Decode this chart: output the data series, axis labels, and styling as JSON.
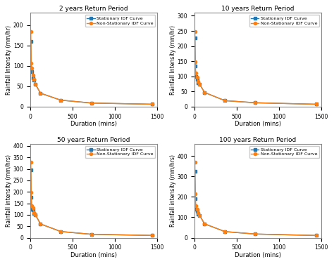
{
  "panels": [
    {
      "title": "2 years Return Period",
      "ylim": [
        0,
        230
      ],
      "yticks": [
        0,
        50,
        100,
        150,
        200
      ],
      "stat_y": [
        160,
        95,
        85,
        70,
        65,
        55,
        33,
        16,
        9,
        6
      ],
      "nonstat_y": [
        183,
        107,
        95,
        78,
        67,
        55,
        33,
        16,
        9,
        6
      ]
    },
    {
      "title": "10 years Return Period",
      "ylim": [
        0,
        310
      ],
      "yticks": [
        0,
        50,
        100,
        150,
        200,
        250,
        300
      ],
      "stat_y": [
        228,
        135,
        100,
        90,
        78,
        75,
        47,
        20,
        13,
        8
      ],
      "nonstat_y": [
        248,
        148,
        110,
        97,
        83,
        75,
        47,
        20,
        13,
        8
      ]
    },
    {
      "title": "50 years Return Period",
      "ylim": [
        0,
        410
      ],
      "yticks": [
        0,
        50,
        100,
        150,
        200,
        250,
        300,
        350,
        400
      ],
      "stat_y": [
        295,
        175,
        125,
        120,
        105,
        100,
        60,
        27,
        15,
        10
      ],
      "nonstat_y": [
        330,
        197,
        140,
        130,
        110,
        100,
        60,
        27,
        15,
        10
      ]
    },
    {
      "title": "100 years Return Period",
      "ylim": [
        0,
        460
      ],
      "yticks": [
        0,
        100,
        200,
        300,
        400
      ],
      "stat_y": [
        325,
        190,
        140,
        130,
        115,
        110,
        68,
        30,
        18,
        11
      ],
      "nonstat_y": [
        370,
        215,
        158,
        140,
        123,
        110,
        68,
        30,
        18,
        11
      ]
    }
  ],
  "durations": [
    5,
    10,
    15,
    30,
    45,
    60,
    120,
    360,
    720,
    1440
  ],
  "xlim": [
    0,
    1500
  ],
  "xticks": [
    0,
    500,
    1000,
    1500
  ],
  "xlabel": "Duration (mins)",
  "ylabel_left": "Rainfall Intensity (mm/hr)",
  "ylabel_right": "Rainfall intensity (mm/hrs)",
  "stat_color": "#1f77b4",
  "nonstat_color": "#ff7f0e",
  "stat_label": "Stationary IDF Curve",
  "nonstat_label": "Non-Stationary IDF Curve",
  "stat_marker": "s",
  "nonstat_marker": "o",
  "fig_bg": "#ffffff",
  "ax_bg": "#ffffff"
}
